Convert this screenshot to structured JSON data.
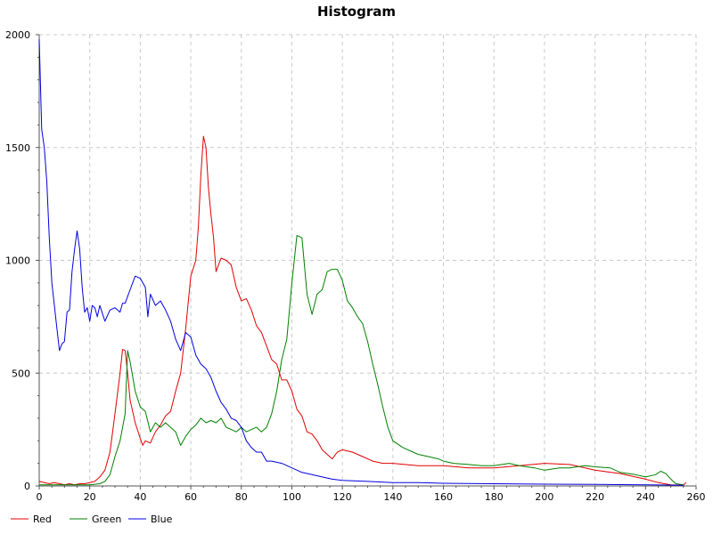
{
  "chart_data": {
    "type": "line",
    "title": "Histogram",
    "xlabel": "",
    "ylabel": "",
    "xlim": [
      0,
      260
    ],
    "ylim": [
      0,
      2000
    ],
    "x_ticks": [
      0,
      20,
      40,
      60,
      80,
      100,
      120,
      140,
      160,
      180,
      200,
      220,
      240,
      260
    ],
    "y_ticks": [
      0,
      500,
      1000,
      1500,
      2000
    ],
    "grid": true,
    "legend_position": "bottom-left",
    "series": [
      {
        "name": "Red",
        "color": "#e00000",
        "points": [
          [
            0,
            20
          ],
          [
            2,
            15
          ],
          [
            4,
            10
          ],
          [
            6,
            15
          ],
          [
            8,
            10
          ],
          [
            10,
            5
          ],
          [
            12,
            10
          ],
          [
            14,
            5
          ],
          [
            16,
            10
          ],
          [
            18,
            10
          ],
          [
            20,
            15
          ],
          [
            22,
            20
          ],
          [
            24,
            40
          ],
          [
            26,
            70
          ],
          [
            28,
            150
          ],
          [
            30,
            320
          ],
          [
            32,
            500
          ],
          [
            33,
            605
          ],
          [
            34,
            600
          ],
          [
            35,
            500
          ],
          [
            36,
            380
          ],
          [
            38,
            280
          ],
          [
            40,
            210
          ],
          [
            41,
            180
          ],
          [
            42,
            200
          ],
          [
            44,
            190
          ],
          [
            46,
            240
          ],
          [
            48,
            270
          ],
          [
            50,
            310
          ],
          [
            52,
            330
          ],
          [
            54,
            420
          ],
          [
            56,
            500
          ],
          [
            58,
            700
          ],
          [
            60,
            930
          ],
          [
            62,
            1000
          ],
          [
            63,
            1150
          ],
          [
            64,
            1380
          ],
          [
            65,
            1550
          ],
          [
            66,
            1500
          ],
          [
            67,
            1320
          ],
          [
            68,
            1200
          ],
          [
            69,
            1100
          ],
          [
            70,
            950
          ],
          [
            72,
            1010
          ],
          [
            74,
            1000
          ],
          [
            76,
            980
          ],
          [
            78,
            880
          ],
          [
            80,
            820
          ],
          [
            82,
            830
          ],
          [
            84,
            780
          ],
          [
            86,
            710
          ],
          [
            88,
            680
          ],
          [
            90,
            620
          ],
          [
            92,
            560
          ],
          [
            94,
            540
          ],
          [
            96,
            470
          ],
          [
            98,
            470
          ],
          [
            100,
            420
          ],
          [
            102,
            340
          ],
          [
            104,
            310
          ],
          [
            106,
            240
          ],
          [
            108,
            230
          ],
          [
            110,
            200
          ],
          [
            112,
            160
          ],
          [
            114,
            140
          ],
          [
            116,
            120
          ],
          [
            118,
            150
          ],
          [
            120,
            160
          ],
          [
            124,
            150
          ],
          [
            128,
            130
          ],
          [
            132,
            110
          ],
          [
            136,
            100
          ],
          [
            140,
            100
          ],
          [
            150,
            90
          ],
          [
            160,
            90
          ],
          [
            170,
            80
          ],
          [
            180,
            80
          ],
          [
            190,
            90
          ],
          [
            200,
            100
          ],
          [
            210,
            95
          ],
          [
            220,
            70
          ],
          [
            230,
            55
          ],
          [
            240,
            30
          ],
          [
            245,
            15
          ],
          [
            250,
            5
          ],
          [
            255,
            3
          ],
          [
            256,
            15
          ]
        ]
      },
      {
        "name": "Green",
        "color": "#008000",
        "points": [
          [
            0,
            5
          ],
          [
            10,
            5
          ],
          [
            20,
            5
          ],
          [
            24,
            10
          ],
          [
            26,
            20
          ],
          [
            28,
            50
          ],
          [
            30,
            130
          ],
          [
            32,
            200
          ],
          [
            34,
            320
          ],
          [
            35,
            600
          ],
          [
            36,
            550
          ],
          [
            38,
            420
          ],
          [
            40,
            350
          ],
          [
            42,
            330
          ],
          [
            44,
            240
          ],
          [
            46,
            280
          ],
          [
            48,
            260
          ],
          [
            50,
            280
          ],
          [
            52,
            260
          ],
          [
            54,
            240
          ],
          [
            56,
            180
          ],
          [
            58,
            220
          ],
          [
            60,
            250
          ],
          [
            62,
            270
          ],
          [
            64,
            300
          ],
          [
            66,
            280
          ],
          [
            68,
            290
          ],
          [
            70,
            280
          ],
          [
            72,
            300
          ],
          [
            74,
            260
          ],
          [
            76,
            250
          ],
          [
            78,
            240
          ],
          [
            80,
            260
          ],
          [
            82,
            240
          ],
          [
            84,
            250
          ],
          [
            86,
            260
          ],
          [
            88,
            240
          ],
          [
            90,
            260
          ],
          [
            92,
            320
          ],
          [
            94,
            420
          ],
          [
            96,
            560
          ],
          [
            98,
            650
          ],
          [
            100,
            900
          ],
          [
            102,
            1110
          ],
          [
            104,
            1100
          ],
          [
            106,
            850
          ],
          [
            108,
            760
          ],
          [
            110,
            850
          ],
          [
            112,
            870
          ],
          [
            114,
            950
          ],
          [
            116,
            960
          ],
          [
            118,
            960
          ],
          [
            120,
            910
          ],
          [
            122,
            820
          ],
          [
            124,
            790
          ],
          [
            126,
            750
          ],
          [
            128,
            720
          ],
          [
            130,
            640
          ],
          [
            132,
            540
          ],
          [
            134,
            450
          ],
          [
            136,
            350
          ],
          [
            138,
            260
          ],
          [
            140,
            200
          ],
          [
            144,
            170
          ],
          [
            148,
            150
          ],
          [
            150,
            140
          ],
          [
            154,
            130
          ],
          [
            158,
            120
          ],
          [
            160,
            110
          ],
          [
            164,
            100
          ],
          [
            170,
            95
          ],
          [
            175,
            90
          ],
          [
            180,
            90
          ],
          [
            186,
            100
          ],
          [
            190,
            90
          ],
          [
            196,
            80
          ],
          [
            200,
            70
          ],
          [
            206,
            80
          ],
          [
            210,
            80
          ],
          [
            216,
            90
          ],
          [
            220,
            85
          ],
          [
            226,
            80
          ],
          [
            230,
            60
          ],
          [
            236,
            50
          ],
          [
            240,
            40
          ],
          [
            244,
            50
          ],
          [
            246,
            65
          ],
          [
            248,
            55
          ],
          [
            250,
            30
          ],
          [
            252,
            10
          ],
          [
            255,
            5
          ]
        ]
      },
      {
        "name": "Blue",
        "color": "#0000e0",
        "points": [
          [
            0,
            1980
          ],
          [
            1,
            1580
          ],
          [
            2,
            1500
          ],
          [
            3,
            1350
          ],
          [
            4,
            1100
          ],
          [
            5,
            900
          ],
          [
            6,
            800
          ],
          [
            7,
            700
          ],
          [
            8,
            600
          ],
          [
            9,
            630
          ],
          [
            10,
            640
          ],
          [
            11,
            770
          ],
          [
            12,
            780
          ],
          [
            13,
            950
          ],
          [
            14,
            1050
          ],
          [
            15,
            1130
          ],
          [
            16,
            1050
          ],
          [
            17,
            880
          ],
          [
            18,
            770
          ],
          [
            19,
            790
          ],
          [
            20,
            730
          ],
          [
            21,
            800
          ],
          [
            22,
            790
          ],
          [
            23,
            750
          ],
          [
            24,
            800
          ],
          [
            26,
            730
          ],
          [
            28,
            780
          ],
          [
            30,
            790
          ],
          [
            32,
            770
          ],
          [
            33,
            810
          ],
          [
            34,
            810
          ],
          [
            36,
            870
          ],
          [
            38,
            930
          ],
          [
            40,
            920
          ],
          [
            42,
            880
          ],
          [
            43,
            750
          ],
          [
            44,
            850
          ],
          [
            46,
            800
          ],
          [
            48,
            820
          ],
          [
            50,
            780
          ],
          [
            52,
            730
          ],
          [
            54,
            650
          ],
          [
            56,
            600
          ],
          [
            58,
            680
          ],
          [
            60,
            660
          ],
          [
            62,
            580
          ],
          [
            64,
            540
          ],
          [
            66,
            520
          ],
          [
            68,
            480
          ],
          [
            70,
            420
          ],
          [
            72,
            370
          ],
          [
            74,
            340
          ],
          [
            76,
            300
          ],
          [
            78,
            290
          ],
          [
            80,
            260
          ],
          [
            82,
            200
          ],
          [
            84,
            170
          ],
          [
            86,
            150
          ],
          [
            88,
            150
          ],
          [
            90,
            110
          ],
          [
            92,
            110
          ],
          [
            96,
            100
          ],
          [
            100,
            80
          ],
          [
            104,
            60
          ],
          [
            108,
            50
          ],
          [
            112,
            40
          ],
          [
            116,
            30
          ],
          [
            120,
            25
          ],
          [
            130,
            20
          ],
          [
            140,
            15
          ],
          [
            150,
            15
          ],
          [
            160,
            12
          ],
          [
            180,
            10
          ],
          [
            200,
            8
          ],
          [
            220,
            7
          ],
          [
            240,
            5
          ],
          [
            255,
            3
          ]
        ]
      }
    ]
  }
}
